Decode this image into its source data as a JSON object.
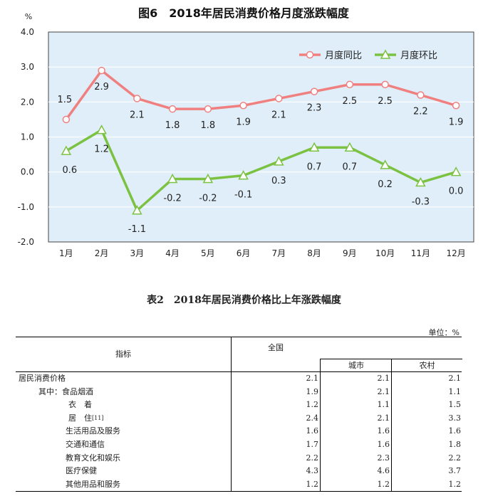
{
  "chart_data": {
    "type": "line",
    "title": "图6　2018年居民消费价格月度涨跌幅度",
    "y_unit": "%",
    "categories": [
      "1月",
      "2月",
      "3月",
      "4月",
      "5月",
      "6月",
      "7月",
      "8月",
      "9月",
      "10月",
      "11月",
      "12月"
    ],
    "ylim": [
      -2.0,
      4.0
    ],
    "yticks": [
      "4.0",
      "3.0",
      "2.0",
      "1.0",
      "0.0",
      "-1.0",
      "-2.0"
    ],
    "grid": true,
    "legend_position": "top-right",
    "series": [
      {
        "name": "月度同比",
        "color": "#f08080",
        "marker": "circle",
        "values": [
          1.5,
          2.9,
          2.1,
          1.8,
          1.8,
          1.9,
          2.1,
          2.3,
          2.5,
          2.5,
          2.2,
          1.9
        ],
        "labels": [
          "1.5",
          "2.9",
          "2.1",
          "1.8",
          "1.8",
          "1.9",
          "2.1",
          "2.3",
          "2.5",
          "2.5",
          "2.2",
          "1.9"
        ]
      },
      {
        "name": "月度环比",
        "color": "#7cc242",
        "marker": "triangle",
        "values": [
          0.6,
          1.2,
          -1.1,
          -0.2,
          -0.2,
          -0.1,
          0.3,
          0.7,
          0.7,
          0.2,
          -0.3,
          0.0
        ],
        "labels": [
          "0.6",
          "1.2",
          "-1.1",
          "-0.2",
          "-0.2",
          "-0.1",
          "0.3",
          "0.7",
          "0.7",
          "0.2",
          "-0.3",
          "0.0"
        ]
      }
    ],
    "plot_bg": "#dfeef8"
  },
  "table": {
    "title": "表2　2018年居民消费价格比上年涨跌幅度",
    "unit": "单位：%",
    "headers": {
      "indicator": "指标",
      "national": "全国",
      "city": "城市",
      "rural": "农村"
    },
    "rows": [
      {
        "name": "居民消费价格",
        "national": "2.1",
        "city": "2.1",
        "rural": "2.1"
      },
      {
        "name": "其中：食品烟酒",
        "national": "1.9",
        "city": "2.1",
        "rural": "1.1"
      },
      {
        "name": "衣　着",
        "national": "1.2",
        "city": "1.1",
        "rural": "1.5"
      },
      {
        "name": "居　住",
        "note": "[11]",
        "national": "2.4",
        "city": "2.1",
        "rural": "3.3"
      },
      {
        "name": "生活用品及服务",
        "national": "1.6",
        "city": "1.6",
        "rural": "1.6"
      },
      {
        "name": "交通和通信",
        "national": "1.7",
        "city": "1.6",
        "rural": "1.8"
      },
      {
        "name": "教育文化和娱乐",
        "national": "2.2",
        "city": "2.3",
        "rural": "2.2"
      },
      {
        "name": "医疗保健",
        "national": "4.3",
        "city": "4.6",
        "rural": "3.7"
      },
      {
        "name": "其他用品和服务",
        "national": "1.2",
        "city": "1.2",
        "rural": "1.2"
      }
    ]
  }
}
